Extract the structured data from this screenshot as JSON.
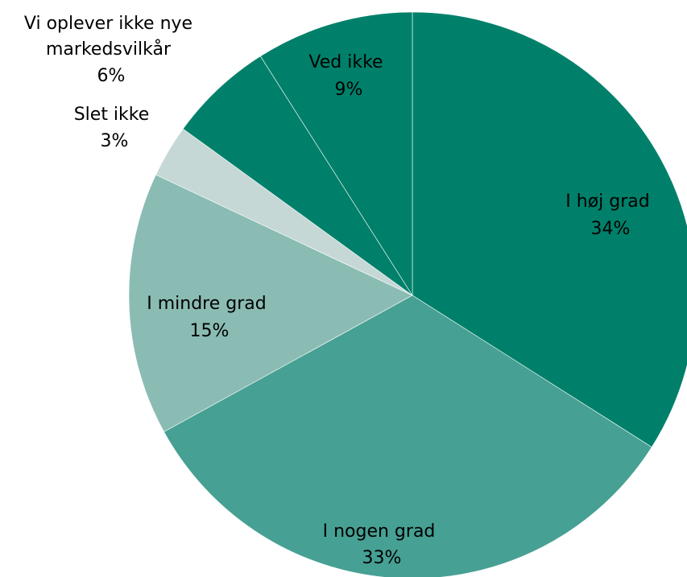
{
  "chart_data": {
    "type": "pie",
    "title": "",
    "slices": [
      {
        "label": "I høj grad",
        "value_label": "34%",
        "value": 34,
        "color": "#00806a"
      },
      {
        "label": "I nogen grad",
        "value_label": "33%",
        "value": 33,
        "color": "#46a093"
      },
      {
        "label": "I mindre grad",
        "value_label": "15%",
        "value": 15,
        "color": "#8abcb4"
      },
      {
        "label": "Slet ikke",
        "value_label": "3%",
        "value": 3,
        "color": "#c5d8d5"
      },
      {
        "label": "Vi oplever ikke nye markedsvilkår",
        "value_label": "6%",
        "value": 6,
        "color": "#00806a"
      },
      {
        "label": "Ved ikke",
        "value_label": "9%",
        "value": 9,
        "color": "#00806a"
      }
    ]
  }
}
